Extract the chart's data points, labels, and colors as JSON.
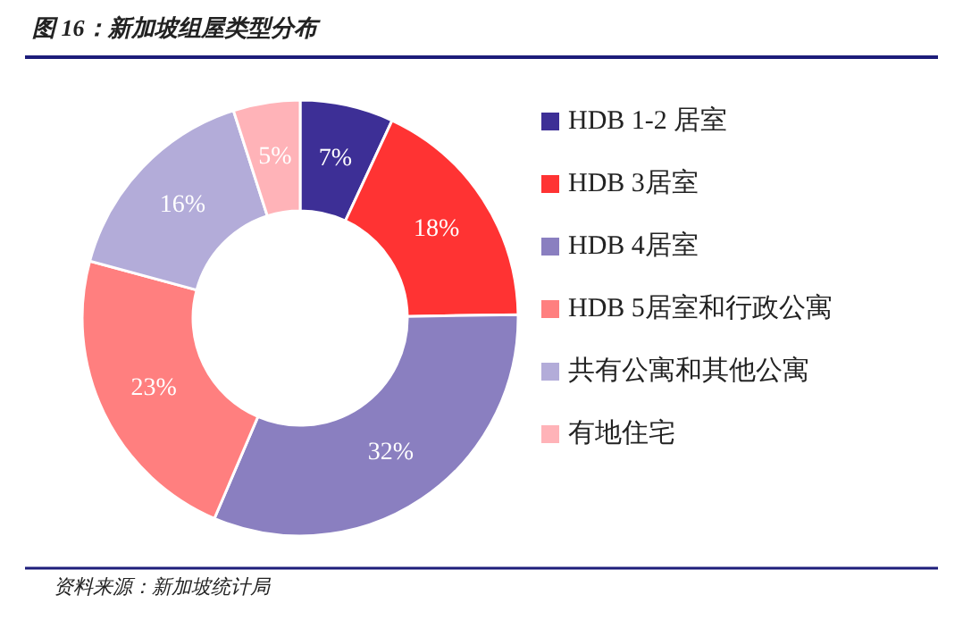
{
  "chart_data": {
    "type": "donut",
    "title": "图 16：新加坡组屋类型分布",
    "categories": [
      "HDB 1-2 居室",
      "HDB 3居室",
      "HDB 4居室",
      "HDB 5居室和行政公寓",
      "共有公寓和其他公寓",
      "有地住宅"
    ],
    "values": [
      7,
      18,
      32,
      23,
      16,
      5
    ],
    "colors": [
      "#3d2f96",
      "#ff3333",
      "#8a7fc0",
      "#ff7f7f",
      "#b3acd9",
      "#ffb3b8"
    ],
    "value_labels": [
      "7%",
      "18%",
      "32%",
      "23%",
      "16%",
      "5%"
    ],
    "legend": "right",
    "annotations": [
      "资料来源：新加坡统计局"
    ]
  }
}
